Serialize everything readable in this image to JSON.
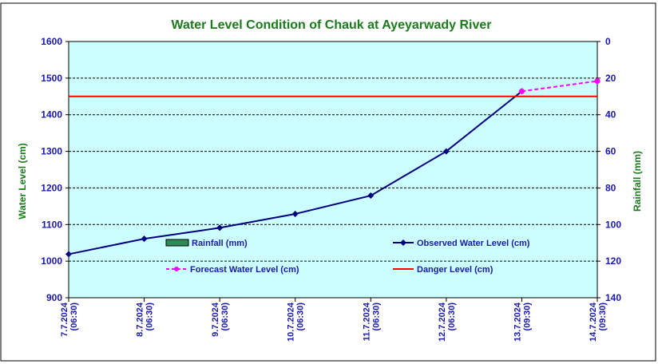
{
  "chart_data": {
    "type": "line",
    "title": "Water Level Condition of Chauk at Ayeyarwady River",
    "ylabel": "Water Level (cm)",
    "y2label": "Rainfall (mm)",
    "ylim": [
      900,
      1600
    ],
    "y_ticks": [
      900,
      1000,
      1100,
      1200,
      1300,
      1400,
      1500,
      1600
    ],
    "y2lim": [
      0,
      140
    ],
    "y2_ticks": [
      0,
      20,
      40,
      60,
      80,
      100,
      120,
      140
    ],
    "y2_inverted": true,
    "categories": [
      [
        "7.7.2024",
        "(06:30)"
      ],
      [
        "8.7.2024",
        "(06:30)"
      ],
      [
        "9.7.2024",
        "(06:30)"
      ],
      [
        "10.7.2024",
        "(06:30)"
      ],
      [
        "11.7.2024",
        "(06:30)"
      ],
      [
        "12.7.2024",
        "(06:30)"
      ],
      [
        "13.7.2024",
        "(09:30)"
      ],
      [
        "14.7.2024",
        "(09:30)"
      ]
    ],
    "series": [
      {
        "name": "Observed Water Level (cm)",
        "color": "#000080",
        "marker": "diamond",
        "values": [
          1019,
          1061,
          1091,
          1129,
          1179,
          1300,
          1464,
          null
        ]
      },
      {
        "name": "Forecast Water Level (cm)",
        "color": "#ff00ff",
        "marker": "circle",
        "dashed": true,
        "values": [
          null,
          null,
          null,
          null,
          null,
          null,
          1464,
          1492
        ]
      },
      {
        "name": "Danger Level (cm)",
        "color": "#ff0000",
        "values": [
          1450,
          1450,
          1450,
          1450,
          1450,
          1450,
          1450,
          1450
        ]
      },
      {
        "name": "Rainfall (mm)",
        "color": "#2e8b57",
        "type": "bar",
        "axis": "right",
        "values": [
          0,
          0,
          0,
          0,
          0,
          0,
          0,
          0
        ]
      }
    ],
    "grid": "horizontal-dashed",
    "plot_background": "#ccffff",
    "legend": {
      "rainfall": "Rainfall (mm)",
      "observed": "Observed Water Level (cm)",
      "forecast": "Forecast Water Level (cm)",
      "danger": "Danger Level (cm)"
    }
  }
}
